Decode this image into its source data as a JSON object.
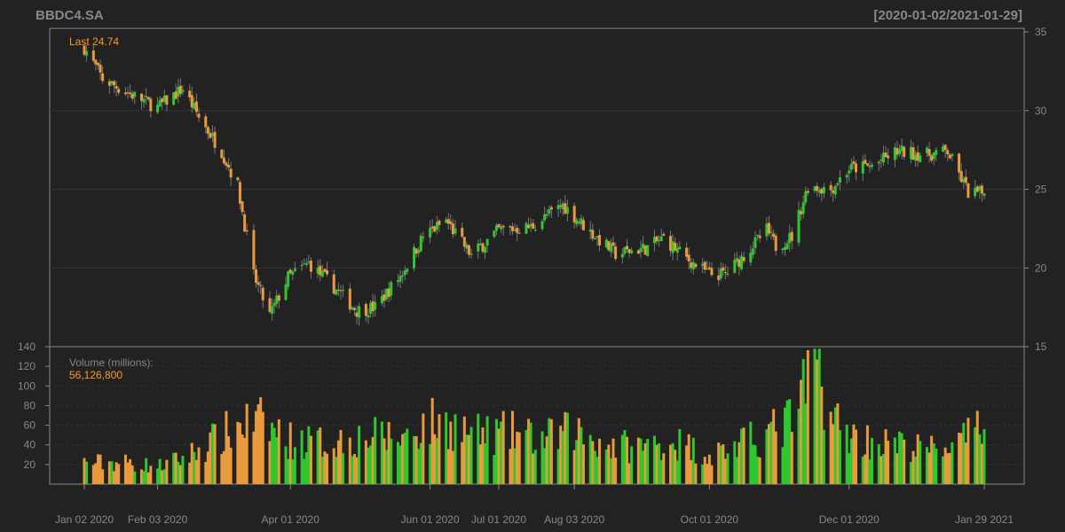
{
  "header": {
    "symbol": "BBDC4.SA",
    "date_range": "[2020-01-02/2021-01-29]"
  },
  "price_panel": {
    "last_label": "Last 24.74"
  },
  "volume_panel": {
    "label": "Volume (millions):",
    "last_volume": "56,126,800"
  },
  "colors": {
    "background": "#222222",
    "up": "#2ec72e",
    "down": "#e89a3c",
    "grid": "#333333",
    "axis_text": "#888888",
    "accent": "#ff9a1f"
  },
  "chart_data": [
    {
      "type": "candlestick",
      "title": "BBDC4.SA",
      "subtitle": "[2020-01-02/2021-01-29]",
      "yticks": [
        15,
        20,
        25,
        30,
        35
      ],
      "ylim": [
        15,
        35
      ],
      "xticks": [
        "Jan 02 2020",
        "Feb 03 2020",
        "Apr 01 2020",
        "Jun 01 2020",
        "Jul 01 2020",
        "Aug 03 2020",
        "Oct 01 2020",
        "Dec 01 2020",
        "Jan 29 2021"
      ],
      "xtick_dates": [
        "2020-01-02",
        "2020-02-03",
        "2020-04-01",
        "2020-06-01",
        "2020-07-01",
        "2020-08-03",
        "2020-10-01",
        "2020-12-01",
        "2021-01-29"
      ],
      "close_anchors": [
        [
          "2020-01-02",
          34.0
        ],
        [
          "2020-01-10",
          32.0
        ],
        [
          "2020-01-20",
          31.2
        ],
        [
          "2020-02-03",
          30.2
        ],
        [
          "2020-02-14",
          31.4
        ],
        [
          "2020-02-21",
          29.6
        ],
        [
          "2020-03-02",
          27.4
        ],
        [
          "2020-03-09",
          25.2
        ],
        [
          "2020-03-16",
          19.5
        ],
        [
          "2020-03-23",
          17.0
        ],
        [
          "2020-03-31",
          19.4
        ],
        [
          "2020-04-09",
          20.3
        ],
        [
          "2020-04-20",
          18.8
        ],
        [
          "2020-04-30",
          17.3
        ],
        [
          "2020-05-08",
          17.5
        ],
        [
          "2020-05-19",
          19.5
        ],
        [
          "2020-05-29",
          22.0
        ],
        [
          "2020-06-08",
          23.0
        ],
        [
          "2020-06-19",
          20.8
        ],
        [
          "2020-07-01",
          22.4
        ],
        [
          "2020-07-15",
          22.6
        ],
        [
          "2020-07-29",
          24.0
        ],
        [
          "2020-08-10",
          22.3
        ],
        [
          "2020-08-21",
          20.9
        ],
        [
          "2020-09-04",
          21.3
        ],
        [
          "2020-09-11",
          21.9
        ],
        [
          "2020-09-21",
          20.6
        ],
        [
          "2020-10-01",
          19.6
        ],
        [
          "2020-10-08",
          19.6
        ],
        [
          "2020-10-16",
          20.8
        ],
        [
          "2020-10-26",
          22.4
        ],
        [
          "2020-10-30",
          21.4
        ],
        [
          "2020-11-06",
          22.0
        ],
        [
          "2020-11-13",
          25.2
        ],
        [
          "2020-11-23",
          25.0
        ],
        [
          "2020-12-01",
          26.3
        ],
        [
          "2020-12-11",
          26.5
        ],
        [
          "2020-12-22",
          27.4
        ],
        [
          "2021-01-04",
          27.2
        ],
        [
          "2021-01-13",
          27.4
        ],
        [
          "2021-01-22",
          24.8
        ],
        [
          "2021-01-29",
          24.74
        ]
      ]
    },
    {
      "type": "bar",
      "ylabel": "Volume (millions):",
      "yticks": [
        20,
        40,
        60,
        80,
        100,
        120,
        140
      ],
      "ylim": [
        0,
        140
      ],
      "volume_anchors": [
        [
          "2020-01-02",
          22
        ],
        [
          "2020-01-20",
          22
        ],
        [
          "2020-02-03",
          18
        ],
        [
          "2020-02-14",
          26
        ],
        [
          "2020-02-28",
          45
        ],
        [
          "2020-03-12",
          62
        ],
        [
          "2020-03-20",
          62
        ],
        [
          "2020-03-31",
          45
        ],
        [
          "2020-04-15",
          42
        ],
        [
          "2020-05-05",
          48
        ],
        [
          "2020-05-20",
          48
        ],
        [
          "2020-06-01",
          62
        ],
        [
          "2020-06-10",
          60
        ],
        [
          "2020-06-22",
          50
        ],
        [
          "2020-07-08",
          52
        ],
        [
          "2020-07-20",
          45
        ],
        [
          "2020-08-03",
          55
        ],
        [
          "2020-08-17",
          40
        ],
        [
          "2020-09-01",
          38
        ],
        [
          "2020-09-15",
          44
        ],
        [
          "2020-10-01",
          30
        ],
        [
          "2020-10-15",
          40
        ],
        [
          "2020-11-03",
          60
        ],
        [
          "2020-11-10",
          80
        ],
        [
          "2020-11-16",
          135
        ],
        [
          "2020-11-24",
          65
        ],
        [
          "2020-12-03",
          48
        ],
        [
          "2020-12-15",
          42
        ],
        [
          "2021-01-05",
          35
        ],
        [
          "2021-01-18",
          42
        ],
        [
          "2021-01-29",
          56.13
        ]
      ]
    }
  ]
}
